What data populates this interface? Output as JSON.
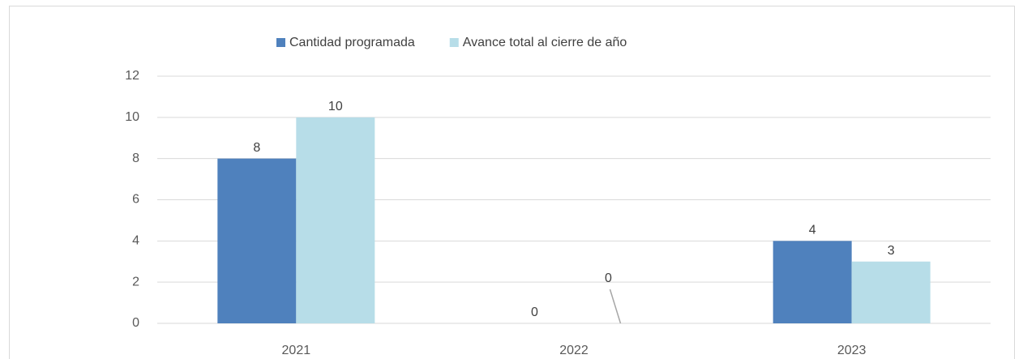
{
  "chart_data": {
    "type": "bar",
    "categories": [
      "2021",
      "2022",
      "2023"
    ],
    "series": [
      {
        "name": "Cantidad programada",
        "color": "#4f81bd",
        "values": [
          8,
          0,
          4
        ]
      },
      {
        "name": "Avance total al cierre de año",
        "color": "#b7dde8",
        "values": [
          10,
          0,
          3
        ]
      }
    ],
    "ylim": [
      0,
      12
    ],
    "yticks": [
      0,
      2,
      4,
      6,
      8,
      10,
      12
    ],
    "grid": true,
    "legend": "top"
  }
}
